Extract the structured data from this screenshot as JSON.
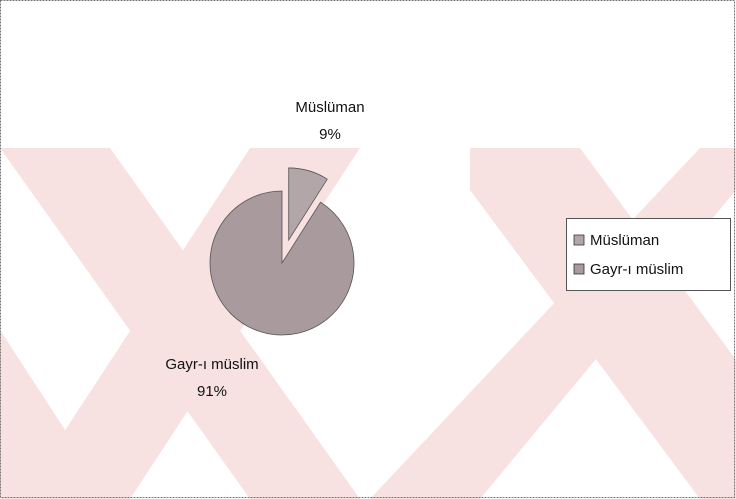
{
  "chart_data": {
    "type": "pie",
    "categories": [
      "Müslüman",
      "Gayr-ı müslim"
    ],
    "values": [
      9,
      91
    ],
    "value_labels": [
      "9%",
      "91%"
    ],
    "colors": [
      "#b3a6a9",
      "#a89a9d"
    ],
    "legend": "right"
  }
}
